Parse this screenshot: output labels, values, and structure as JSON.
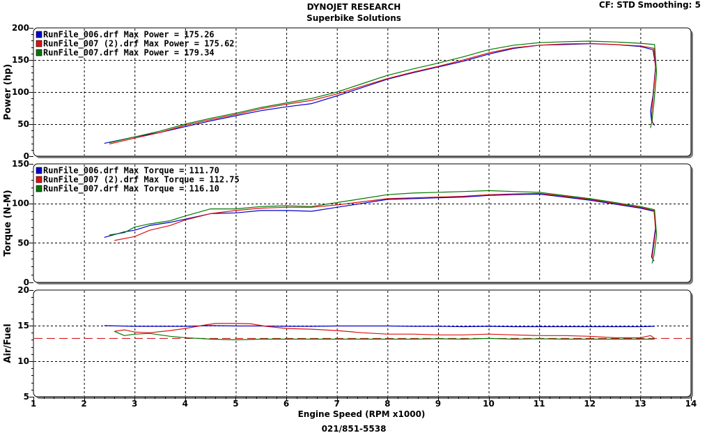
{
  "header": {
    "title": "DYNOJET RESEARCH",
    "subtitle": "Superbike Solutions",
    "cf_label": "CF: STD",
    "smoothing_label": "Smoothing: 5"
  },
  "footer": {
    "phone": "021/851-5538"
  },
  "colors": {
    "run_006": "#0000cc",
    "run_007_2": "#dd1111",
    "run_007": "#007700",
    "afr_target": "#cc0000",
    "grid": "#000000",
    "panel_shadow": "#808080"
  },
  "chart_data": [
    {
      "type": "line",
      "id": "power",
      "title": "",
      "xlabel": "",
      "ylabel": "Power (hp)",
      "xlim": [
        1,
        14
      ],
      "ylim": [
        0,
        200
      ],
      "yticks": [
        "0",
        "50",
        "100",
        "150",
        "200"
      ],
      "grid": true,
      "legend": [
        "RunFile_006.drf Max Power = 175.26",
        "RunFile_007 (2).drf Max Power = 175.62",
        "RunFile_007.drf Max Power = 179.34"
      ],
      "legend_position": "top-left",
      "series": [
        {
          "name": "RunFile_006.drf",
          "color_key": "run_006",
          "points": [
            [
              2.4,
              20
            ],
            [
              3,
              30
            ],
            [
              3.5,
              37
            ],
            [
              4,
              46
            ],
            [
              4.5,
              55
            ],
            [
              5,
              63
            ],
            [
              5.5,
              71
            ],
            [
              6,
              77
            ],
            [
              6.5,
              82
            ],
            [
              7,
              94
            ],
            [
              7.5,
              107
            ],
            [
              8,
              120
            ],
            [
              8.5,
              130
            ],
            [
              9,
              139
            ],
            [
              9.5,
              148
            ],
            [
              10,
              159
            ],
            [
              10.5,
              168
            ],
            [
              11,
              173
            ],
            [
              11.5,
              174
            ],
            [
              12,
              175.3
            ],
            [
              12.5,
              174
            ],
            [
              13,
              171
            ],
            [
              13.25,
              166
            ],
            [
              13.3,
              140
            ],
            [
              13.25,
              95
            ],
            [
              13.2,
              70
            ],
            [
              13.22,
              55
            ],
            [
              13.28,
              48
            ]
          ]
        },
        {
          "name": "RunFile_007 (2).drf",
          "color_key": "run_007_2",
          "points": [
            [
              2.5,
              19
            ],
            [
              3,
              28
            ],
            [
              3.5,
              37
            ],
            [
              4,
              48
            ],
            [
              4.5,
              57
            ],
            [
              5,
              65
            ],
            [
              5.5,
              74
            ],
            [
              6,
              81
            ],
            [
              6.5,
              87
            ],
            [
              7,
              97
            ],
            [
              7.5,
              109
            ],
            [
              8,
              121
            ],
            [
              8.5,
              131
            ],
            [
              9,
              140
            ],
            [
              9.5,
              150
            ],
            [
              10,
              161
            ],
            [
              10.5,
              169
            ],
            [
              11,
              173
            ],
            [
              11.5,
              175
            ],
            [
              12,
              175.6
            ],
            [
              12.5,
              174
            ],
            [
              13,
              172
            ],
            [
              13.27,
              168
            ],
            [
              13.3,
              135
            ],
            [
              13.25,
              90
            ],
            [
              13.22,
              65
            ],
            [
              13.24,
              52
            ]
          ]
        },
        {
          "name": "RunFile_007.drf",
          "color_key": "run_007",
          "points": [
            [
              2.5,
              21
            ],
            [
              3,
              30
            ],
            [
              3.5,
              39
            ],
            [
              4,
              50
            ],
            [
              4.5,
              59
            ],
            [
              5,
              67
            ],
            [
              5.5,
              76
            ],
            [
              6,
              83
            ],
            [
              6.5,
              90
            ],
            [
              7,
              100
            ],
            [
              7.5,
              113
            ],
            [
              8,
              126
            ],
            [
              8.5,
              136
            ],
            [
              9,
              145
            ],
            [
              9.5,
              155
            ],
            [
              10,
              166
            ],
            [
              10.5,
              173
            ],
            [
              11,
              177
            ],
            [
              11.5,
              178.5
            ],
            [
              12,
              179.3
            ],
            [
              12.5,
              178
            ],
            [
              13,
              176
            ],
            [
              13.28,
              174
            ],
            [
              13.32,
              130
            ],
            [
              13.27,
              85
            ],
            [
              13.23,
              55
            ],
            [
              13.2,
              44
            ]
          ]
        }
      ]
    },
    {
      "type": "line",
      "id": "torque",
      "title": "",
      "xlabel": "",
      "ylabel": "Torque (N-M)",
      "xlim": [
        1,
        14
      ],
      "ylim": [
        0,
        150
      ],
      "yticks": [
        "0",
        "50",
        "100",
        "150"
      ],
      "grid": true,
      "legend": [
        "RunFile_006.drf Max Torque = 111.70",
        "RunFile_007 (2).drf Max Torque = 112.75",
        "RunFile_007.drf Max Torque = 116.10"
      ],
      "legend_position": "top-left",
      "series": [
        {
          "name": "RunFile_006.drf",
          "color_key": "run_006",
          "points": [
            [
              2.4,
              57
            ],
            [
              2.8,
              64
            ],
            [
              3,
              66
            ],
            [
              3.3,
              72
            ],
            [
              3.7,
              76
            ],
            [
              4,
              80
            ],
            [
              4.5,
              87
            ],
            [
              5,
              88
            ],
            [
              5.5,
              91
            ],
            [
              6,
              91
            ],
            [
              6.5,
              90
            ],
            [
              7,
              95
            ],
            [
              7.5,
              100
            ],
            [
              8,
              105
            ],
            [
              8.5,
              106
            ],
            [
              9,
              107
            ],
            [
              9.5,
              108
            ],
            [
              10,
              110
            ],
            [
              10.5,
              111
            ],
            [
              11,
              111.7
            ],
            [
              11.5,
              108
            ],
            [
              12,
              104
            ],
            [
              12.5,
              99
            ],
            [
              13,
              94
            ],
            [
              13.27,
              90
            ],
            [
              13.3,
              70
            ],
            [
              13.25,
              45
            ],
            [
              13.22,
              32
            ],
            [
              13.27,
              27
            ]
          ]
        },
        {
          "name": "RunFile_007 (2).drf",
          "color_key": "run_007_2",
          "points": [
            [
              2.6,
              53
            ],
            [
              3,
              58
            ],
            [
              3.3,
              66
            ],
            [
              3.7,
              72
            ],
            [
              4,
              79
            ],
            [
              4.5,
              87
            ],
            [
              5,
              91
            ],
            [
              5.5,
              94
            ],
            [
              6,
              95
            ],
            [
              6.5,
              95
            ],
            [
              7,
              98
            ],
            [
              7.5,
              102
            ],
            [
              8,
              106
            ],
            [
              8.5,
              107
            ],
            [
              9,
              108
            ],
            [
              9.5,
              109
            ],
            [
              10,
              111
            ],
            [
              10.5,
              112
            ],
            [
              11,
              112.7
            ],
            [
              11.5,
              109
            ],
            [
              12,
              105
            ],
            [
              12.5,
              100
            ],
            [
              13,
              95
            ],
            [
              13.27,
              91
            ],
            [
              13.3,
              65
            ],
            [
              13.25,
              40
            ],
            [
              13.23,
              30
            ]
          ]
        },
        {
          "name": "RunFile_007.drf",
          "color_key": "run_007",
          "points": [
            [
              2.5,
              60
            ],
            [
              2.8,
              63
            ],
            [
              3,
              70
            ],
            [
              3.3,
              74
            ],
            [
              3.7,
              78
            ],
            [
              4,
              84
            ],
            [
              4.5,
              93
            ],
            [
              5,
              93
            ],
            [
              5.5,
              96
            ],
            [
              6,
              97
            ],
            [
              6.5,
              96
            ],
            [
              7,
              101
            ],
            [
              7.5,
              106
            ],
            [
              8,
              111
            ],
            [
              8.5,
              113
            ],
            [
              9,
              114
            ],
            [
              9.5,
              115
            ],
            [
              10,
              116.1
            ],
            [
              10.5,
              115
            ],
            [
              11,
              114
            ],
            [
              11.5,
              110
            ],
            [
              12,
              106
            ],
            [
              12.5,
              101
            ],
            [
              13,
              96
            ],
            [
              13.28,
              92
            ],
            [
              13.32,
              60
            ],
            [
              13.27,
              35
            ],
            [
              13.23,
              24
            ]
          ]
        }
      ]
    },
    {
      "type": "line",
      "id": "airfuel",
      "title": "",
      "xlabel": "Engine Speed (RPM x1000)",
      "ylabel": "Air/Fuel",
      "xlim": [
        1,
        14
      ],
      "ylim": [
        5,
        20
      ],
      "yticks": [
        "5",
        "10",
        "15",
        "20"
      ],
      "xticks": [
        "1",
        "2",
        "3",
        "4",
        "5",
        "6",
        "7",
        "8",
        "9",
        "10",
        "11",
        "12",
        "13",
        "14"
      ],
      "grid": true,
      "target_line": 13.2,
      "series": [
        {
          "name": "RunFile_006.drf",
          "color_key": "run_006",
          "points": [
            [
              2.4,
              15
            ],
            [
              3,
              14.9
            ],
            [
              3.5,
              14.9
            ],
            [
              4,
              14.9
            ],
            [
              4.5,
              15
            ],
            [
              5,
              14.95
            ],
            [
              5.5,
              14.95
            ],
            [
              6,
              14.9
            ],
            [
              6.5,
              14.9
            ],
            [
              7,
              14.95
            ],
            [
              7.5,
              14.95
            ],
            [
              8,
              14.95
            ],
            [
              8.5,
              14.9
            ],
            [
              9,
              14.9
            ],
            [
              9.5,
              14.85
            ],
            [
              10,
              14.9
            ],
            [
              10.5,
              14.85
            ],
            [
              11,
              14.85
            ],
            [
              11.5,
              14.85
            ],
            [
              12,
              14.85
            ],
            [
              12.5,
              14.85
            ],
            [
              13,
              14.85
            ],
            [
              13.28,
              14.9
            ]
          ]
        },
        {
          "name": "RunFile_007 (2).drf",
          "color_key": "run_007_2",
          "points": [
            [
              2.6,
              14.2
            ],
            [
              2.8,
              14.4
            ],
            [
              3,
              14.1
            ],
            [
              3.3,
              14
            ],
            [
              3.7,
              14.3
            ],
            [
              4,
              14.6
            ],
            [
              4.4,
              15.1
            ],
            [
              4.6,
              15.3
            ],
            [
              5,
              15.3
            ],
            [
              5.3,
              15.25
            ],
            [
              5.6,
              14.9
            ],
            [
              6,
              14.6
            ],
            [
              6.5,
              14.5
            ],
            [
              7,
              14.3
            ],
            [
              7.5,
              14
            ],
            [
              8,
              13.8
            ],
            [
              8.5,
              13.8
            ],
            [
              9,
              13.7
            ],
            [
              9.5,
              13.7
            ],
            [
              10,
              13.8
            ],
            [
              10.5,
              13.7
            ],
            [
              11,
              13.6
            ],
            [
              11.5,
              13.6
            ],
            [
              12,
              13.5
            ],
            [
              12.5,
              13.3
            ],
            [
              13,
              13.3
            ],
            [
              13.2,
              13.6
            ],
            [
              13.28,
              13.2
            ]
          ]
        },
        {
          "name": "RunFile_007.drf",
          "color_key": "run_007",
          "points": [
            [
              2.6,
              14.2
            ],
            [
              2.8,
              13.6
            ],
            [
              3,
              13.8
            ],
            [
              3.3,
              13.9
            ],
            [
              3.7,
              13.5
            ],
            [
              4,
              13.3
            ],
            [
              4.5,
              13.1
            ],
            [
              5,
              13
            ],
            [
              5.5,
              13.1
            ],
            [
              6,
              13.1
            ],
            [
              6.5,
              13.1
            ],
            [
              7,
              13.1
            ],
            [
              7.5,
              13.1
            ],
            [
              8,
              13.1
            ],
            [
              8.5,
              13.1
            ],
            [
              9,
              13.15
            ],
            [
              9.5,
              13.1
            ],
            [
              10,
              13.2
            ],
            [
              10.5,
              13.1
            ],
            [
              11,
              13.15
            ],
            [
              11.5,
              13.1
            ],
            [
              12,
              13.1
            ],
            [
              12.5,
              13.1
            ],
            [
              13,
              13.1
            ],
            [
              13.28,
              13.1
            ]
          ]
        }
      ]
    }
  ]
}
